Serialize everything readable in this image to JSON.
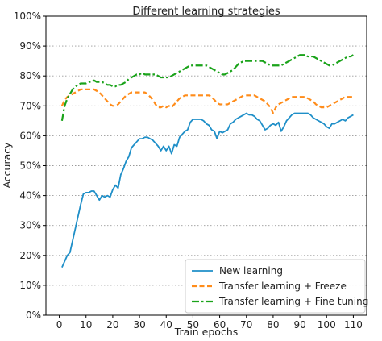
{
  "chart_data": {
    "type": "line",
    "title": "Different learning strategies",
    "xlabel": "Train epochs",
    "ylabel": "Accuracy",
    "xlim": [
      -5,
      115
    ],
    "ylim": [
      0,
      100
    ],
    "x_ticks": [
      0,
      10,
      20,
      30,
      40,
      50,
      60,
      70,
      80,
      90,
      100,
      110
    ],
    "x_tick_labels": [
      "0",
      "10",
      "20",
      "30",
      "40",
      "50",
      "60",
      "70",
      "80",
      "90",
      "100",
      "110"
    ],
    "y_ticks": [
      0,
      10,
      20,
      30,
      40,
      50,
      60,
      70,
      80,
      90,
      100
    ],
    "y_tick_labels": [
      "0%",
      "10%",
      "20%",
      "30%",
      "40%",
      "50%",
      "60%",
      "70%",
      "80%",
      "90%",
      "100%"
    ],
    "grid": "horizontal dotted",
    "legend_position": "lower-right",
    "series": [
      {
        "name": "New learning",
        "color": "#1f8fc8",
        "style": "solid",
        "x": [
          1,
          3,
          4,
          5,
          6,
          7,
          8,
          9,
          10,
          11,
          12,
          13,
          14,
          15,
          16,
          17,
          18,
          19,
          20,
          21,
          22,
          23,
          24,
          25,
          26,
          27,
          28,
          29,
          30,
          31,
          32,
          33,
          34,
          35,
          36,
          37,
          38,
          39,
          40,
          41,
          42,
          43,
          44,
          45,
          46,
          47,
          48,
          49,
          50,
          51,
          52,
          53,
          54,
          55,
          56,
          57,
          58,
          59,
          60,
          61,
          62,
          63,
          64,
          65,
          66,
          67,
          68,
          69,
          70,
          71,
          72,
          73,
          74,
          75,
          76,
          77,
          78,
          79,
          80,
          81,
          82,
          83,
          84,
          85,
          86,
          87,
          88,
          89,
          90,
          91,
          92,
          93,
          94,
          95,
          96,
          97,
          98,
          99,
          100,
          101,
          102,
          103,
          104,
          105,
          106,
          107,
          108,
          109,
          110
        ],
        "values": [
          16,
          20,
          21,
          25,
          29,
          33,
          37,
          40.5,
          41,
          41,
          41.5,
          41.5,
          40,
          38.5,
          40,
          39.5,
          40,
          39.5,
          42,
          43.5,
          42.5,
          47,
          49,
          51.5,
          53,
          56,
          57,
          58,
          59,
          59,
          59.5,
          59.5,
          59,
          58.5,
          57.5,
          56.5,
          55,
          56.5,
          55,
          56.5,
          54,
          57,
          56.5,
          59.5,
          60.5,
          61.5,
          62,
          64.5,
          65.5,
          65.5,
          65.5,
          65.5,
          65,
          64,
          63.5,
          62,
          61.5,
          59,
          61.5,
          61,
          61.5,
          62,
          64,
          64.5,
          65.5,
          66,
          66.5,
          67,
          67.5,
          67,
          67,
          66.5,
          65.5,
          65,
          63.5,
          62,
          62.5,
          63.5,
          64,
          63.5,
          64.5,
          61.5,
          63,
          65,
          66,
          67,
          67.5,
          67.5,
          67.5,
          67.5,
          67.5,
          67.5,
          67,
          66,
          65.5,
          65,
          64.5,
          64,
          63,
          62.5,
          64,
          64,
          64.5,
          65,
          65.5,
          65,
          66,
          66.5,
          67
        ]
      },
      {
        "name": "Transfer learning + Freeze",
        "color": "#ff8c1a",
        "style": "dashed",
        "x": [
          1,
          2,
          3,
          4,
          5,
          6,
          7,
          8,
          9,
          10,
          11,
          12,
          13,
          14,
          15,
          16,
          17,
          18,
          19,
          20,
          21,
          22,
          23,
          24,
          25,
          26,
          27,
          28,
          29,
          30,
          31,
          32,
          33,
          34,
          35,
          36,
          37,
          38,
          39,
          40,
          41,
          42,
          43,
          44,
          45,
          46,
          47,
          48,
          49,
          50,
          51,
          52,
          53,
          54,
          55,
          56,
          57,
          58,
          59,
          60,
          61,
          62,
          63,
          64,
          65,
          66,
          67,
          68,
          69,
          70,
          71,
          72,
          73,
          74,
          75,
          76,
          77,
          78,
          79,
          80,
          81,
          82,
          83,
          84,
          85,
          86,
          87,
          88,
          89,
          90,
          91,
          92,
          93,
          94,
          95,
          96,
          97,
          98,
          99,
          100,
          101,
          102,
          103,
          104,
          105,
          106,
          107,
          108,
          109,
          110
        ],
        "values": [
          70,
          72,
          73,
          73.5,
          74,
          74.5,
          75,
          75.5,
          75.5,
          75.5,
          75.5,
          75.5,
          75.5,
          75,
          74.5,
          73.5,
          72.5,
          71.5,
          70.5,
          70,
          70,
          70.5,
          71.5,
          72.5,
          73.5,
          74,
          74.5,
          74.5,
          74.5,
          74.5,
          74.5,
          74.5,
          74,
          73,
          72,
          70.5,
          69.5,
          69.5,
          70,
          69.5,
          70,
          69.5,
          70.5,
          71.5,
          72.5,
          73,
          73.5,
          73.5,
          73.5,
          73.5,
          73.5,
          73.5,
          73.5,
          73.5,
          73.5,
          73.5,
          73,
          72,
          71,
          70.5,
          70.5,
          70.5,
          70.5,
          71,
          71.5,
          72,
          72.5,
          73,
          73.5,
          73.5,
          73.5,
          73.5,
          73.5,
          73,
          72.5,
          72,
          71.5,
          70.5,
          69.5,
          67.5,
          69.5,
          70.5,
          71,
          71.5,
          72,
          72.5,
          73,
          73,
          73,
          73,
          73,
          73,
          72.5,
          72,
          71.5,
          70.5,
          70,
          69.5,
          69.5,
          69.5,
          70,
          70.5,
          71,
          71.5,
          72,
          72.5,
          73,
          73,
          73,
          73
        ]
      },
      {
        "name": "Transfer learning + Fine tuning",
        "color": "#1aa31a",
        "style": "dashdot",
        "x": [
          1,
          2,
          3,
          4,
          5,
          6,
          7,
          8,
          9,
          10,
          11,
          12,
          13,
          14,
          15,
          16,
          17,
          18,
          19,
          20,
          21,
          22,
          23,
          24,
          25,
          26,
          27,
          28,
          29,
          30,
          31,
          32,
          33,
          34,
          35,
          36,
          37,
          38,
          39,
          40,
          41,
          42,
          43,
          44,
          45,
          46,
          47,
          48,
          49,
          50,
          51,
          52,
          53,
          54,
          55,
          56,
          57,
          58,
          59,
          60,
          61,
          62,
          63,
          64,
          65,
          66,
          67,
          68,
          69,
          70,
          71,
          72,
          73,
          74,
          75,
          76,
          77,
          78,
          79,
          80,
          81,
          82,
          83,
          84,
          85,
          86,
          87,
          88,
          89,
          90,
          91,
          92,
          93,
          94,
          95,
          96,
          97,
          98,
          99,
          100,
          101,
          102,
          103,
          104,
          105,
          106,
          107,
          108,
          109,
          110
        ],
        "values": [
          65,
          70,
          72.5,
          74,
          75.5,
          76.5,
          77,
          77.5,
          77.5,
          77.5,
          78,
          78,
          78.5,
          78,
          78,
          78,
          77.5,
          77,
          77,
          76.5,
          76.5,
          77,
          77,
          77.5,
          78,
          79,
          79.5,
          80,
          80.5,
          80.5,
          81,
          80.5,
          80.5,
          80.5,
          80.5,
          80.5,
          80,
          79.5,
          79.5,
          79.5,
          79.5,
          80,
          80.5,
          81,
          81.5,
          82,
          82.5,
          83,
          83.5,
          83.5,
          83.5,
          83.5,
          83.5,
          83.5,
          83.5,
          83,
          82.5,
          82,
          81.5,
          81,
          80.5,
          80.5,
          81,
          81.5,
          82,
          83,
          84,
          84.5,
          85,
          85,
          85,
          85,
          85,
          85,
          85,
          85,
          84.5,
          84,
          83.5,
          83.5,
          83.5,
          83.5,
          83.5,
          84,
          84.5,
          85,
          85.5,
          86,
          86.5,
          87,
          87,
          87,
          86.5,
          86.5,
          86.5,
          86,
          85.5,
          85,
          84.5,
          84,
          83.5,
          83.5,
          84,
          84.5,
          85,
          85.5,
          86,
          86.5,
          86.5,
          87
        ]
      }
    ]
  }
}
